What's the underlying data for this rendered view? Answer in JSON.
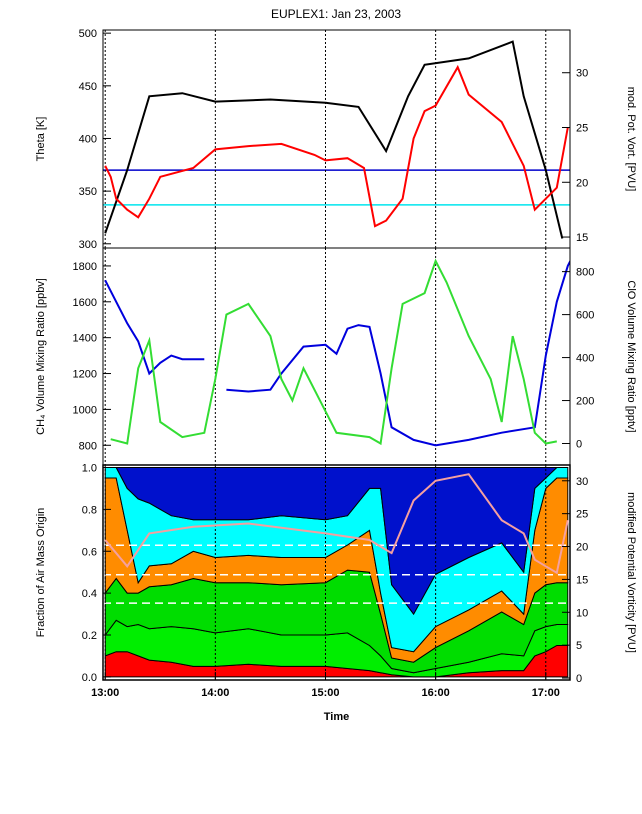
{
  "chart_data": [
    {
      "type": "line",
      "title": "EUPLEX1: Jan 23, 2003",
      "y_label": "Theta [K]",
      "y2_label": "mod. Pot. Vort. [PVU]",
      "xlim": [
        12.98,
        17.22
      ],
      "ylim": [
        296,
        503
      ],
      "yticks": [
        300,
        350,
        400,
        450,
        500
      ],
      "y2lim": [
        14,
        33.9
      ],
      "y2ticks": [
        15,
        20,
        25,
        30
      ],
      "series": [
        {
          "color": "#000000",
          "x": [
            13.0,
            13.2,
            13.4,
            13.7,
            14.0,
            14.5,
            15.0,
            15.3,
            15.55,
            15.75,
            15.9,
            16.3,
            16.7,
            16.8,
            17.0,
            17.15
          ],
          "values": [
            310,
            370,
            440,
            443,
            435,
            437,
            434,
            430,
            388,
            440,
            470,
            476,
            492,
            440,
            370,
            305
          ]
        },
        {
          "color": "#ff0000",
          "axis": "y2",
          "x": [
            13.0,
            13.05,
            13.1,
            13.2,
            13.3,
            13.4,
            13.5,
            13.8,
            14.0,
            14.3,
            14.6,
            14.9,
            15.0,
            15.2,
            15.35,
            15.45,
            15.55,
            15.7,
            15.8,
            15.9,
            16.0,
            16.2,
            16.3,
            16.6,
            16.8,
            16.9,
            17.0,
            17.1,
            17.2
          ],
          "values": [
            21.5,
            20.5,
            18.5,
            17.5,
            16.8,
            18.5,
            20.5,
            21.3,
            23.0,
            23.3,
            23.5,
            22.5,
            22.0,
            22.2,
            21.3,
            16.0,
            16.5,
            18.5,
            24,
            26.5,
            27,
            30.5,
            28,
            25.5,
            21.5,
            17.5,
            18.5,
            19.5,
            25
          ]
        }
      ],
      "reference_lines": [
        {
          "value": 370,
          "color": "#0000cc"
        },
        {
          "value": 337,
          "color": "#00e5ee"
        }
      ]
    },
    {
      "type": "line",
      "y_label": "CH₄ Volume Mixing Ratio [ppbv]",
      "y2_label": "ClO Volume Mixing Ratio [pptv]",
      "xlim": [
        12.98,
        17.22
      ],
      "ylim": [
        690,
        1900
      ],
      "yticks": [
        800,
        1000,
        1200,
        1400,
        1600,
        1800
      ],
      "y2lim": [
        -100,
        910
      ],
      "y2ticks": [
        0,
        200,
        400,
        600,
        800
      ],
      "series": [
        {
          "color": "#0000dd",
          "x": [
            13.0,
            13.1,
            13.2,
            13.3,
            13.4,
            13.5,
            13.6,
            13.7,
            13.9,
            14.0,
            14.1,
            14.3,
            14.5,
            14.6,
            14.8,
            15.0,
            15.1,
            15.2,
            15.3,
            15.4,
            15.5,
            15.6,
            15.8,
            16.0,
            16.3,
            16.6,
            16.9,
            17.0,
            17.1,
            17.2,
            17.25
          ],
          "values": [
            1720,
            1600,
            1480,
            1380,
            1200,
            1260,
            1300,
            1280,
            1280,
            null,
            1110,
            1100,
            1110,
            1200,
            1350,
            1360,
            1310,
            1450,
            1470,
            1460,
            1200,
            900,
            830,
            800,
            830,
            870,
            900,
            1300,
            1600,
            1800,
            1860
          ]
        },
        {
          "color": "#33dd33",
          "axis": "y2",
          "x": [
            13.05,
            13.2,
            13.3,
            13.4,
            13.5,
            13.7,
            13.9,
            14.0,
            14.1,
            14.3,
            14.5,
            14.6,
            14.7,
            14.8,
            15.0,
            15.1,
            15.4,
            15.5,
            15.6,
            15.7,
            15.9,
            16.0,
            16.1,
            16.3,
            16.5,
            16.6,
            16.7,
            16.8,
            16.9,
            17.0,
            17.1
          ],
          "values": [
            20,
            0,
            350,
            480,
            100,
            30,
            50,
            300,
            600,
            650,
            500,
            300,
            200,
            350,
            150,
            50,
            30,
            0,
            350,
            650,
            700,
            850,
            750,
            500,
            300,
            100,
            500,
            300,
            50,
            0,
            10
          ]
        }
      ]
    },
    {
      "type": "area",
      "y_label": "Fraction of Air Mass Origin",
      "y2_label": "modified Potential Vorticity [PVU]",
      "x_label": "Time",
      "xlim": [
        12.98,
        17.22
      ],
      "ylim": [
        -0.015,
        1.012
      ],
      "yticks": [
        {
          "value": 0,
          "label": "0.0"
        },
        {
          "value": 0.2,
          "label": "0.2"
        },
        {
          "value": 0.4,
          "label": "0.4"
        },
        {
          "value": 0.6,
          "label": "0.6"
        },
        {
          "value": 0.8,
          "label": "0.8"
        },
        {
          "value": 1,
          "label": "1.0"
        }
      ],
      "y2lim": [
        -0.3,
        32.4
      ],
      "y2ticks": [
        0,
        5,
        10,
        15,
        20,
        25,
        30
      ],
      "xticks": [
        {
          "value": 13,
          "label": "13:00"
        },
        {
          "value": 14,
          "label": "14:00"
        },
        {
          "value": 15,
          "label": "15:00"
        },
        {
          "value": 16,
          "label": "16:00"
        },
        {
          "value": 17,
          "label": "17:00"
        }
      ],
      "x": [
        13.0,
        13.1,
        13.2,
        13.3,
        13.4,
        13.6,
        13.8,
        14.0,
        14.3,
        14.6,
        15.0,
        15.2,
        15.4,
        15.5,
        15.6,
        15.8,
        16.0,
        16.3,
        16.6,
        16.8,
        16.9,
        17.0,
        17.1,
        17.2
      ],
      "series": [
        {
          "color": "#ff0000",
          "values": [
            0.1,
            0.12,
            0.12,
            0.1,
            0.08,
            0.07,
            0.05,
            0.05,
            0.06,
            0.05,
            0.05,
            0.04,
            0.03,
            0.02,
            0.01,
            0.0,
            0.0,
            0.02,
            0.03,
            0.03,
            0.1,
            0.12,
            0.15,
            0.15
          ]
        },
        {
          "color": "#00ee00",
          "values": [
            0.1,
            0.15,
            0.12,
            0.15,
            0.15,
            0.17,
            0.18,
            0.16,
            0.17,
            0.15,
            0.15,
            0.17,
            0.12,
            0.08,
            0.03,
            0.02,
            0.04,
            0.05,
            0.08,
            0.07,
            0.12,
            0.12,
            0.1,
            0.1
          ]
        },
        {
          "color": "#00dd00",
          "values": [
            0.2,
            0.2,
            0.16,
            0.15,
            0.2,
            0.2,
            0.24,
            0.24,
            0.22,
            0.24,
            0.25,
            0.3,
            0.35,
            0.2,
            0.05,
            0.05,
            0.1,
            0.15,
            0.2,
            0.15,
            0.18,
            0.2,
            0.2,
            0.2
          ]
        },
        {
          "color": "#ff8c00",
          "values": [
            0.55,
            0.48,
            0.3,
            0.05,
            0.1,
            0.1,
            0.13,
            0.12,
            0.13,
            0.13,
            0.12,
            0.12,
            0.2,
            0.1,
            0.05,
            0.05,
            0.1,
            0.1,
            0.1,
            0.05,
            0.3,
            0.46,
            0.5,
            0.5
          ]
        },
        {
          "color": "#00ffff",
          "values": [
            0.05,
            0.05,
            0.2,
            0.4,
            0.3,
            0.23,
            0.15,
            0.18,
            0.17,
            0.2,
            0.18,
            0.14,
            0.2,
            0.5,
            0.3,
            0.18,
            0.25,
            0.25,
            0.23,
            0.2,
            0.2,
            0.05,
            0.05,
            0.05
          ]
        },
        {
          "color": "#0011cc",
          "values": [
            0,
            0,
            0.1,
            0.15,
            0.17,
            0.23,
            0.25,
            0.25,
            0.25,
            0.23,
            0.25,
            0.23,
            0.1,
            0.1,
            0.56,
            0.7,
            0.51,
            0.43,
            0.36,
            0.5,
            0.1,
            0.05,
            0,
            0
          ]
        }
      ],
      "overlay_series": [
        {
          "color": "#f4a0a0",
          "axis": "y2",
          "x": [
            13.0,
            13.2,
            13.4,
            13.8,
            14.3,
            15.0,
            15.4,
            15.6,
            15.8,
            16.0,
            16.3,
            16.6,
            16.8,
            16.9,
            17.1,
            17.2
          ],
          "values": [
            21,
            17,
            22,
            23,
            23.5,
            22,
            21,
            19,
            27,
            30,
            31,
            24,
            22,
            18,
            16,
            24
          ]
        }
      ],
      "reference_lines": [
        {
          "value": 20.2,
          "color": "#ffffff",
          "axis": "y2",
          "dash": true
        },
        {
          "value": 15.7,
          "color": "#ffffff",
          "axis": "y2",
          "dash": true
        },
        {
          "value": 11.4,
          "color": "#ffffff",
          "axis": "y2",
          "dash": true
        }
      ]
    }
  ]
}
